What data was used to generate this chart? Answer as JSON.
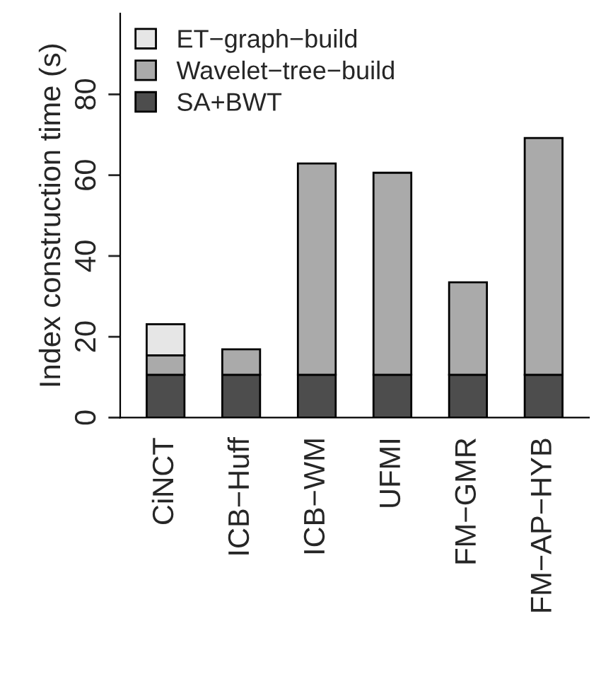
{
  "chart_data": {
    "type": "bar",
    "stacked": true,
    "ylabel": "Index construction time (s)",
    "categories": [
      "CiNCT",
      "ICB−Huff",
      "ICB−WM",
      "UFMI",
      "FM−GMR",
      "FM−AP−HYB"
    ],
    "series": [
      {
        "name": "SA+BWT",
        "color": "#4d4d4d",
        "values": [
          10.6,
          10.6,
          10.6,
          10.6,
          10.6,
          10.6
        ]
      },
      {
        "name": "Wavelet−tree−build",
        "color": "#aaaaaa",
        "values": [
          4.8,
          6.3,
          52.3,
          50.0,
          22.9,
          58.6
        ]
      },
      {
        "name": "ET−graph−build",
        "color": "#e6e6e6",
        "values": [
          7.7,
          null,
          null,
          null,
          null,
          null
        ]
      }
    ],
    "ylim": [
      0,
      100
    ],
    "yticks": [
      0,
      20,
      40,
      60,
      80
    ],
    "grid": false,
    "legend": "top left"
  }
}
